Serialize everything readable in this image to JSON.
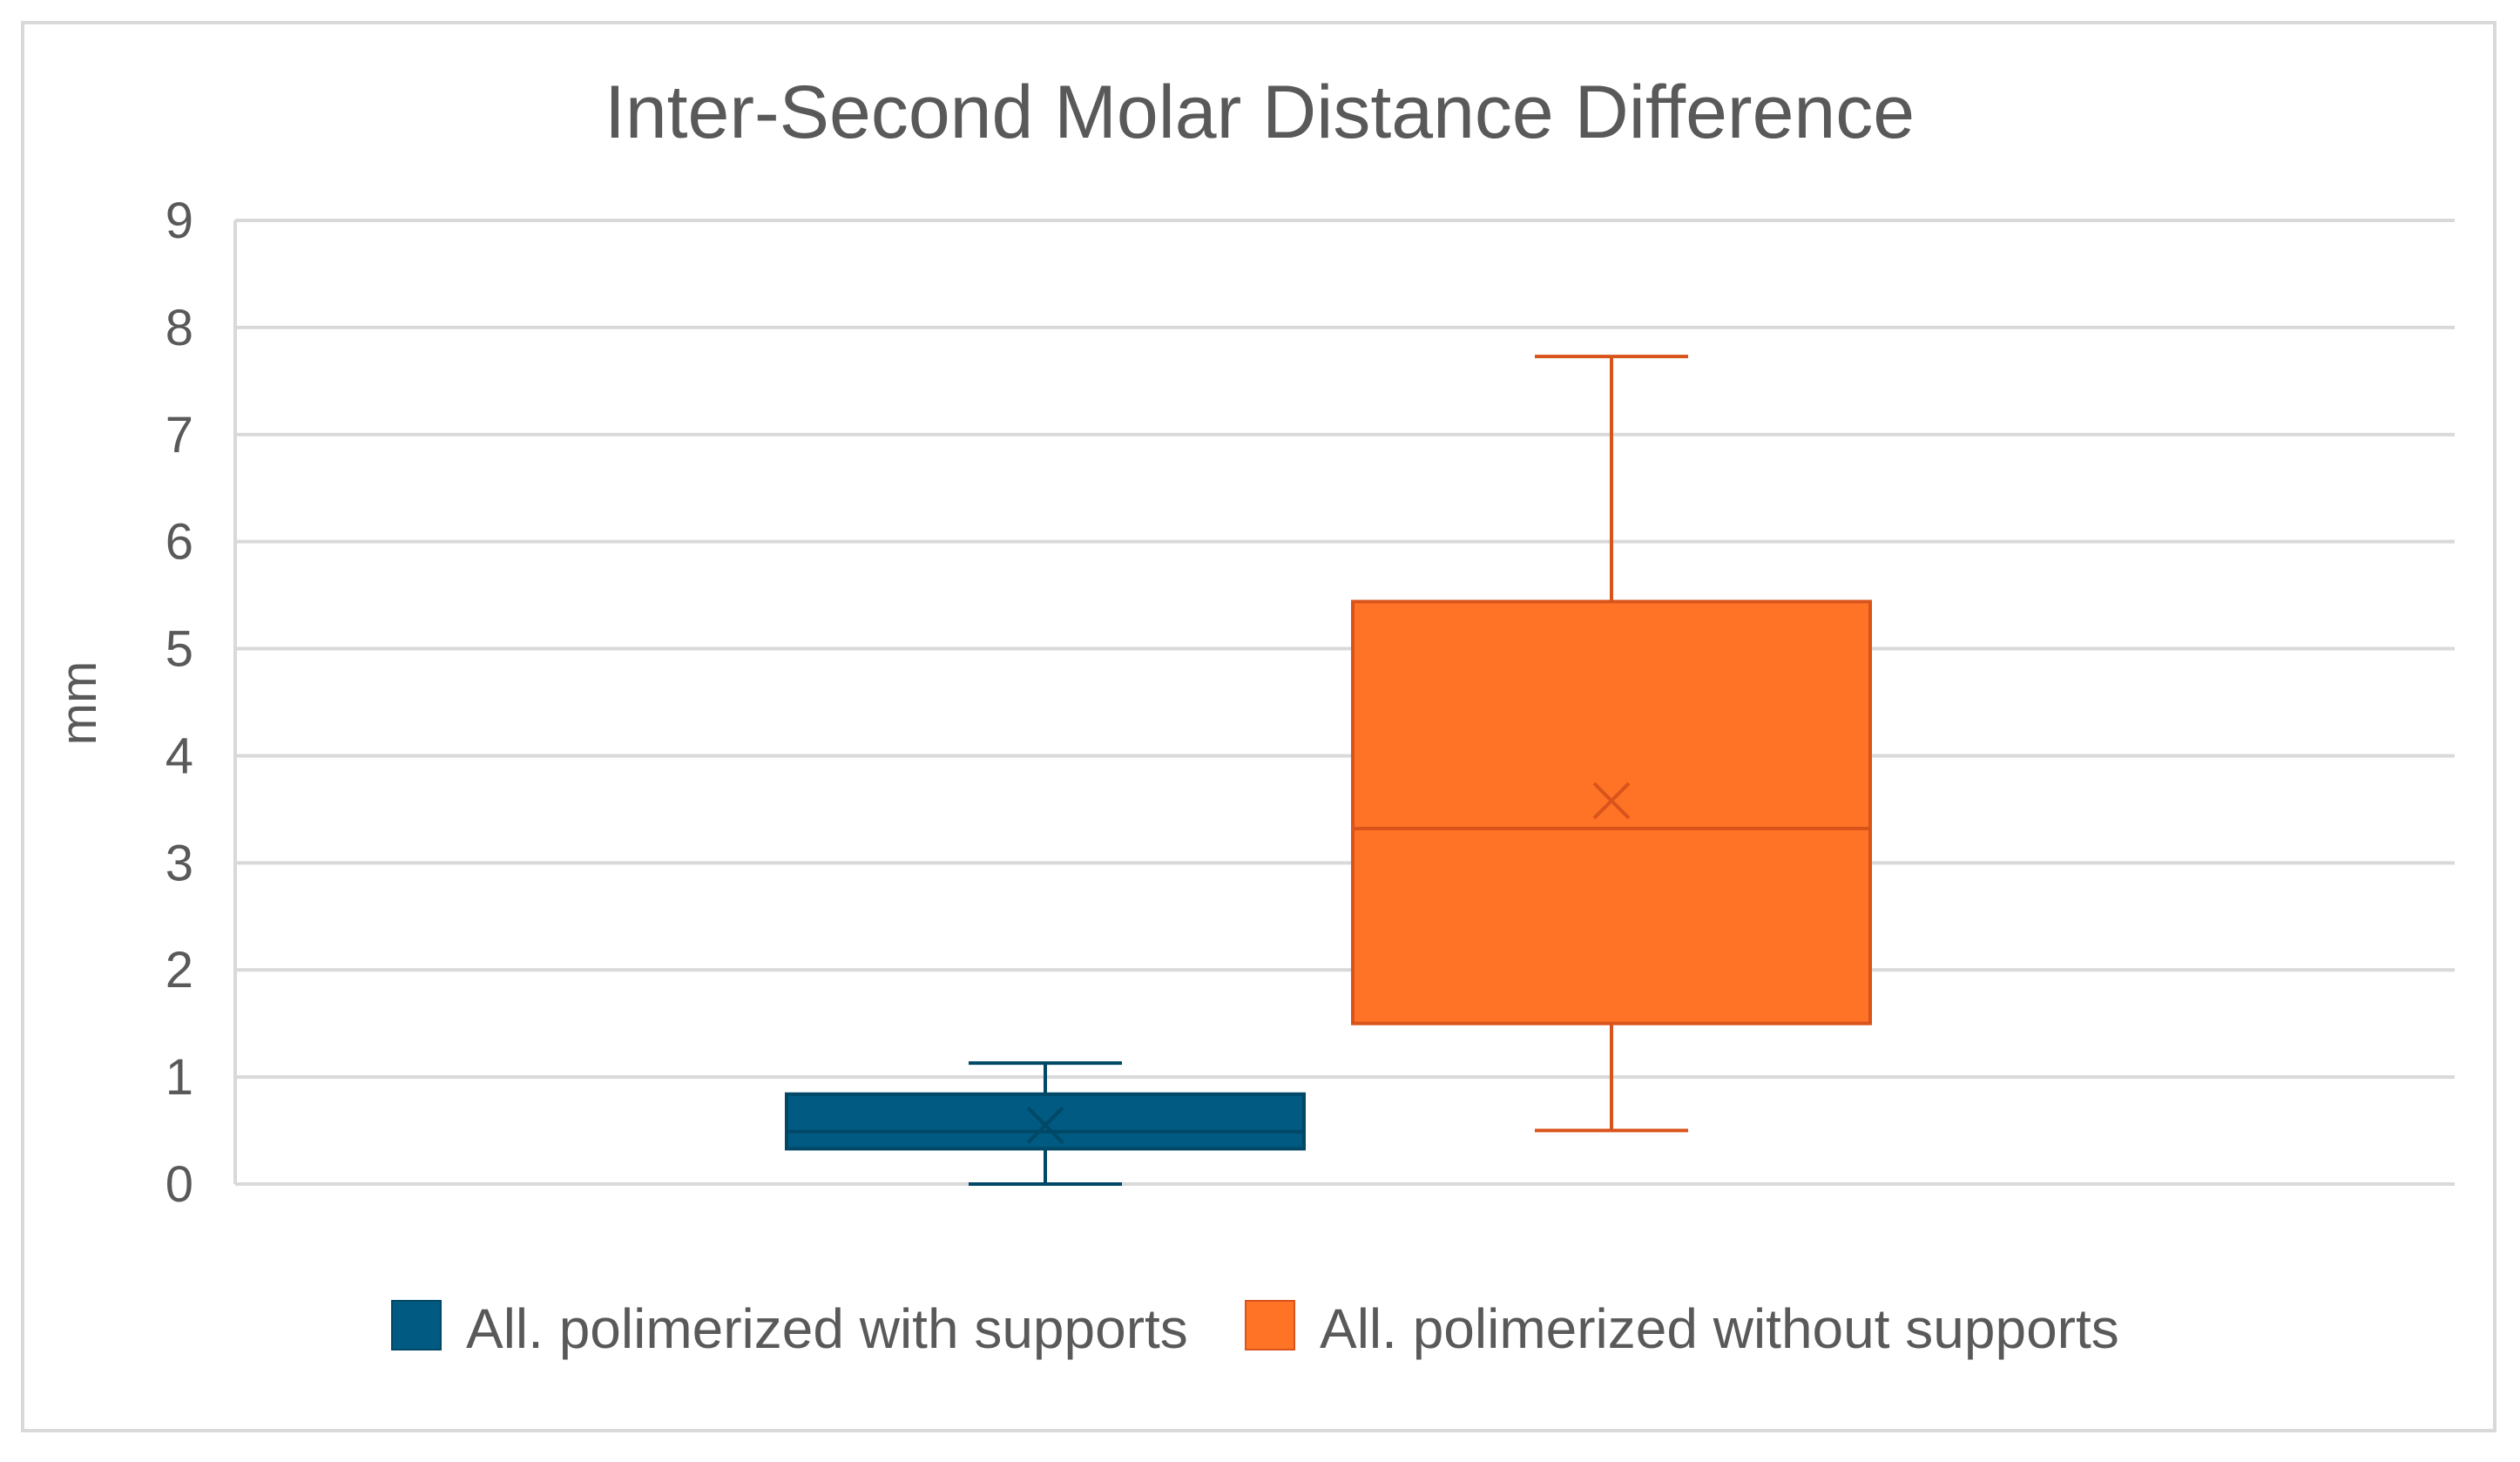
{
  "chart_data": {
    "type": "box",
    "title": "Inter-Second Molar Distance Difference",
    "xlabel": "",
    "ylabel": "mm",
    "ylim": [
      0,
      9
    ],
    "y_ticks": [
      0,
      1,
      2,
      3,
      4,
      5,
      6,
      7,
      8,
      9
    ],
    "grid": true,
    "legend_position": "bottom",
    "series": [
      {
        "name": "All. polimerized with supports",
        "color": "#005a82",
        "min": 0.0,
        "q1": 0.33,
        "median": 0.49,
        "q3": 0.84,
        "max": 1.13,
        "mean": 0.55
      },
      {
        "name": "All. polimerized without supports",
        "color": "#ff7327",
        "min": 0.5,
        "q1": 1.5,
        "median": 3.32,
        "q3": 5.44,
        "max": 7.73,
        "mean": 3.58
      }
    ]
  }
}
